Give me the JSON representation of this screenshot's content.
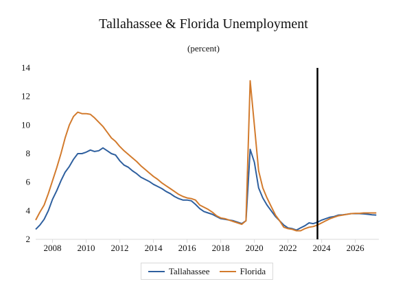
{
  "chart_data": {
    "type": "line",
    "title": "Tallahassee & Florida Unemployment",
    "subtitle": "(percent)",
    "xlabel": "",
    "ylabel": "",
    "xlim": [
      2007,
      2027.4
    ],
    "ylim": [
      2,
      14
    ],
    "xticks": [
      2008,
      2010,
      2012,
      2014,
      2016,
      2018,
      2020,
      2022,
      2024,
      2026
    ],
    "yticks": [
      2,
      4,
      6,
      8,
      10,
      12,
      14
    ],
    "grid": false,
    "legend_position": "bottom-center",
    "vertical_line_x": 2023.75,
    "vertical_line_color": "#000000",
    "series": [
      {
        "name": "Tallahassee",
        "color": "#2e5f9e",
        "points": [
          [
            2007.0,
            2.7
          ],
          [
            2007.25,
            3.0
          ],
          [
            2007.5,
            3.4
          ],
          [
            2007.75,
            4.0
          ],
          [
            2008.0,
            4.8
          ],
          [
            2008.25,
            5.4
          ],
          [
            2008.5,
            6.1
          ],
          [
            2008.75,
            6.7
          ],
          [
            2009.0,
            7.1
          ],
          [
            2009.25,
            7.6
          ],
          [
            2009.5,
            8.0
          ],
          [
            2009.75,
            8.0
          ],
          [
            2010.0,
            8.1
          ],
          [
            2010.25,
            8.25
          ],
          [
            2010.5,
            8.15
          ],
          [
            2010.75,
            8.2
          ],
          [
            2011.0,
            8.4
          ],
          [
            2011.25,
            8.2
          ],
          [
            2011.5,
            8.0
          ],
          [
            2011.75,
            7.9
          ],
          [
            2012.0,
            7.5
          ],
          [
            2012.25,
            7.2
          ],
          [
            2012.5,
            7.05
          ],
          [
            2012.75,
            6.8
          ],
          [
            2013.0,
            6.6
          ],
          [
            2013.25,
            6.35
          ],
          [
            2013.5,
            6.2
          ],
          [
            2013.75,
            6.05
          ],
          [
            2014.0,
            5.85
          ],
          [
            2014.25,
            5.7
          ],
          [
            2014.5,
            5.55
          ],
          [
            2014.75,
            5.35
          ],
          [
            2015.0,
            5.2
          ],
          [
            2015.25,
            5.0
          ],
          [
            2015.5,
            4.85
          ],
          [
            2015.75,
            4.75
          ],
          [
            2016.0,
            4.75
          ],
          [
            2016.25,
            4.7
          ],
          [
            2016.5,
            4.45
          ],
          [
            2016.75,
            4.15
          ],
          [
            2017.0,
            3.95
          ],
          [
            2017.25,
            3.85
          ],
          [
            2017.5,
            3.75
          ],
          [
            2017.75,
            3.6
          ],
          [
            2018.0,
            3.45
          ],
          [
            2018.25,
            3.4
          ],
          [
            2018.5,
            3.35
          ],
          [
            2018.75,
            3.3
          ],
          [
            2019.0,
            3.2
          ],
          [
            2019.25,
            3.1
          ],
          [
            2019.5,
            3.3
          ],
          [
            2019.75,
            8.3
          ],
          [
            2020.0,
            7.4
          ],
          [
            2020.25,
            5.6
          ],
          [
            2020.5,
            4.9
          ],
          [
            2020.75,
            4.4
          ],
          [
            2021.0,
            4.0
          ],
          [
            2021.25,
            3.6
          ],
          [
            2021.5,
            3.3
          ],
          [
            2021.75,
            3.0
          ],
          [
            2022.0,
            2.8
          ],
          [
            2022.25,
            2.75
          ],
          [
            2022.5,
            2.65
          ],
          [
            2022.75,
            2.8
          ],
          [
            2023.0,
            2.95
          ],
          [
            2023.25,
            3.15
          ],
          [
            2023.5,
            3.1
          ],
          [
            2023.75,
            3.2
          ],
          [
            2024.0,
            3.35
          ],
          [
            2024.25,
            3.45
          ],
          [
            2024.5,
            3.55
          ],
          [
            2024.75,
            3.6
          ],
          [
            2025.0,
            3.7
          ],
          [
            2025.25,
            3.72
          ],
          [
            2025.5,
            3.75
          ],
          [
            2025.75,
            3.8
          ],
          [
            2026.0,
            3.8
          ],
          [
            2026.25,
            3.8
          ],
          [
            2026.5,
            3.78
          ],
          [
            2026.75,
            3.75
          ],
          [
            2027.0,
            3.72
          ],
          [
            2027.25,
            3.7
          ]
        ]
      },
      {
        "name": "Florida",
        "color": "#d27a2c",
        "points": [
          [
            2007.0,
            3.35
          ],
          [
            2007.25,
            3.9
          ],
          [
            2007.5,
            4.4
          ],
          [
            2007.75,
            5.2
          ],
          [
            2008.0,
            6.1
          ],
          [
            2008.25,
            7.0
          ],
          [
            2008.5,
            8.0
          ],
          [
            2008.75,
            9.1
          ],
          [
            2009.0,
            10.0
          ],
          [
            2009.25,
            10.6
          ],
          [
            2009.5,
            10.9
          ],
          [
            2009.75,
            10.8
          ],
          [
            2010.0,
            10.8
          ],
          [
            2010.25,
            10.75
          ],
          [
            2010.5,
            10.5
          ],
          [
            2010.75,
            10.2
          ],
          [
            2011.0,
            9.9
          ],
          [
            2011.25,
            9.5
          ],
          [
            2011.5,
            9.1
          ],
          [
            2011.75,
            8.85
          ],
          [
            2012.0,
            8.5
          ],
          [
            2012.25,
            8.2
          ],
          [
            2012.5,
            7.95
          ],
          [
            2012.75,
            7.7
          ],
          [
            2013.0,
            7.45
          ],
          [
            2013.25,
            7.15
          ],
          [
            2013.5,
            6.9
          ],
          [
            2013.75,
            6.65
          ],
          [
            2014.0,
            6.4
          ],
          [
            2014.25,
            6.2
          ],
          [
            2014.5,
            5.95
          ],
          [
            2014.75,
            5.75
          ],
          [
            2015.0,
            5.55
          ],
          [
            2015.25,
            5.35
          ],
          [
            2015.5,
            5.15
          ],
          [
            2015.75,
            5.0
          ],
          [
            2016.0,
            4.9
          ],
          [
            2016.25,
            4.85
          ],
          [
            2016.5,
            4.75
          ],
          [
            2016.75,
            4.4
          ],
          [
            2017.0,
            4.25
          ],
          [
            2017.25,
            4.1
          ],
          [
            2017.5,
            3.9
          ],
          [
            2017.75,
            3.65
          ],
          [
            2018.0,
            3.5
          ],
          [
            2018.25,
            3.45
          ],
          [
            2018.5,
            3.35
          ],
          [
            2018.75,
            3.25
          ],
          [
            2019.0,
            3.15
          ],
          [
            2019.25,
            3.05
          ],
          [
            2019.5,
            3.3
          ],
          [
            2019.75,
            13.1
          ],
          [
            2020.0,
            10.0
          ],
          [
            2020.25,
            6.8
          ],
          [
            2020.5,
            5.6
          ],
          [
            2020.75,
            4.9
          ],
          [
            2021.0,
            4.3
          ],
          [
            2021.25,
            3.7
          ],
          [
            2021.5,
            3.3
          ],
          [
            2021.75,
            2.85
          ],
          [
            2022.0,
            2.75
          ],
          [
            2022.25,
            2.7
          ],
          [
            2022.5,
            2.6
          ],
          [
            2022.75,
            2.6
          ],
          [
            2023.0,
            2.75
          ],
          [
            2023.25,
            2.85
          ],
          [
            2023.5,
            2.9
          ],
          [
            2023.75,
            3.0
          ],
          [
            2024.0,
            3.15
          ],
          [
            2024.25,
            3.3
          ],
          [
            2024.5,
            3.45
          ],
          [
            2024.75,
            3.55
          ],
          [
            2025.0,
            3.65
          ],
          [
            2025.25,
            3.7
          ],
          [
            2025.5,
            3.75
          ],
          [
            2025.75,
            3.8
          ],
          [
            2026.0,
            3.82
          ],
          [
            2026.25,
            3.82
          ],
          [
            2026.5,
            3.85
          ],
          [
            2026.75,
            3.85
          ],
          [
            2027.0,
            3.85
          ],
          [
            2027.25,
            3.85
          ]
        ]
      }
    ]
  }
}
